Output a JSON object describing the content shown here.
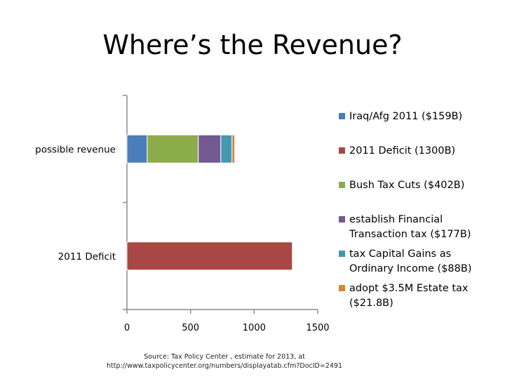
{
  "title": "Where’s the Revenue?",
  "source_line1": "Source: Tax Policy Center , estimate for 2013, at",
  "source_line2": "http://www.taxpolicycenter.org/numbers/displayatab.cfm?DocID=2491",
  "chart_data": {
    "type": "bar",
    "orientation": "horizontal",
    "stacked": true,
    "categories": [
      "2011 Deficit",
      "possible revenue"
    ],
    "xlim": [
      0,
      1500
    ],
    "xticks": [
      "0",
      "500",
      "1000",
      "1500"
    ],
    "grid": false,
    "legend_position": "right",
    "series": [
      {
        "name": "Iraq/Afg 2011 ($159B)",
        "color": "#4a7ebb",
        "values": [
          0,
          159
        ]
      },
      {
        "name": "2011 Deficit (1300B)",
        "color": "#a84743",
        "values": [
          1300,
          0
        ]
      },
      {
        "name": "Bush Tax Cuts ($402B)",
        "color": "#8cac4b",
        "values": [
          0,
          402
        ]
      },
      {
        "name": "establish Financial Transaction tax ($177B)",
        "color": "#735892",
        "values": [
          0,
          177
        ]
      },
      {
        "name": "tax Capital Gains as Ordinary Income ($88B)",
        "color": "#4498ae",
        "values": [
          0,
          88
        ]
      },
      {
        "name": "adopt $3.5M Estate tax ($21.8B)",
        "color": "#d9843b",
        "values": [
          0,
          21.8
        ]
      }
    ]
  }
}
